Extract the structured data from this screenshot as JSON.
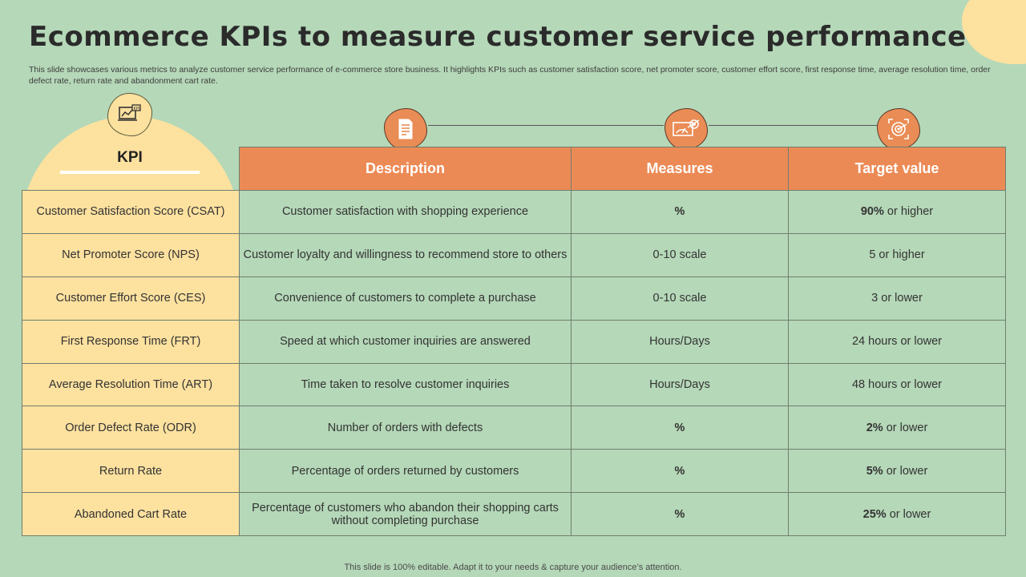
{
  "slide": {
    "title": "Ecommerce KPIs to measure customer service performance",
    "subtitle": "This slide showcases various metrics to analyze customer service performance of e-commerce store business. It highlights KPIs such as customer satisfaction score, net promoter score, customer effort score, first response time, average resolution time, order defect rate, return rate and abandonment cart rate.",
    "footer": "This slide is 100% editable. Adapt it to your needs & capture your audience’s attention."
  },
  "colors": {
    "background": "#b5d8b8",
    "accent_orange": "#ec8a55",
    "accent_yellow": "#fde19f"
  },
  "kpi_header": {
    "label": "KPI",
    "icon": "kpi-dashboard-icon"
  },
  "columns": [
    {
      "label": "Description",
      "icon": "document-icon"
    },
    {
      "label": "Measures",
      "icon": "target-chart-icon"
    },
    {
      "label": "Target value",
      "icon": "target-arrow-icon"
    }
  ],
  "rows": [
    {
      "kpi": "Customer Satisfaction Score (CSAT)",
      "description": "Customer satisfaction with shopping experience",
      "measure": "%",
      "measure_bold": true,
      "target_bold": "90%",
      "target_rest": " or higher"
    },
    {
      "kpi": "Net Promoter Score (NPS)",
      "description": "Customer loyalty and willingness to recommend store to others",
      "measure": "0-10 scale",
      "measure_bold": false,
      "target_bold": "",
      "target_rest": "5 or higher"
    },
    {
      "kpi": "Customer Effort Score (CES)",
      "description": "Convenience of customers to complete a purchase",
      "measure": "0-10 scale",
      "measure_bold": false,
      "target_bold": "",
      "target_rest": "3 or lower"
    },
    {
      "kpi": "First Response Time (FRT)",
      "description": "Speed at which customer inquiries are answered",
      "measure": "Hours/Days",
      "measure_bold": false,
      "target_bold": "",
      "target_rest": "24 hours or lower"
    },
    {
      "kpi": "Average Resolution Time (ART)",
      "description": "Time taken to resolve customer inquiries",
      "measure": "Hours/Days",
      "measure_bold": false,
      "target_bold": "",
      "target_rest": "48 hours or lower"
    },
    {
      "kpi": "Order Defect Rate (ODR)",
      "description": "Number of orders with defects",
      "measure": "%",
      "measure_bold": true,
      "target_bold": "2%",
      "target_rest": " or lower"
    },
    {
      "kpi": "Return Rate",
      "description": "Percentage of orders returned by customers",
      "measure": "%",
      "measure_bold": true,
      "target_bold": "5%",
      "target_rest": " or lower"
    },
    {
      "kpi": "Abandoned Cart Rate",
      "description": "Percentage of customers who abandon their shopping carts without completing purchase",
      "measure": "%",
      "measure_bold": true,
      "target_bold": "25%",
      "target_rest": " or lower"
    }
  ]
}
